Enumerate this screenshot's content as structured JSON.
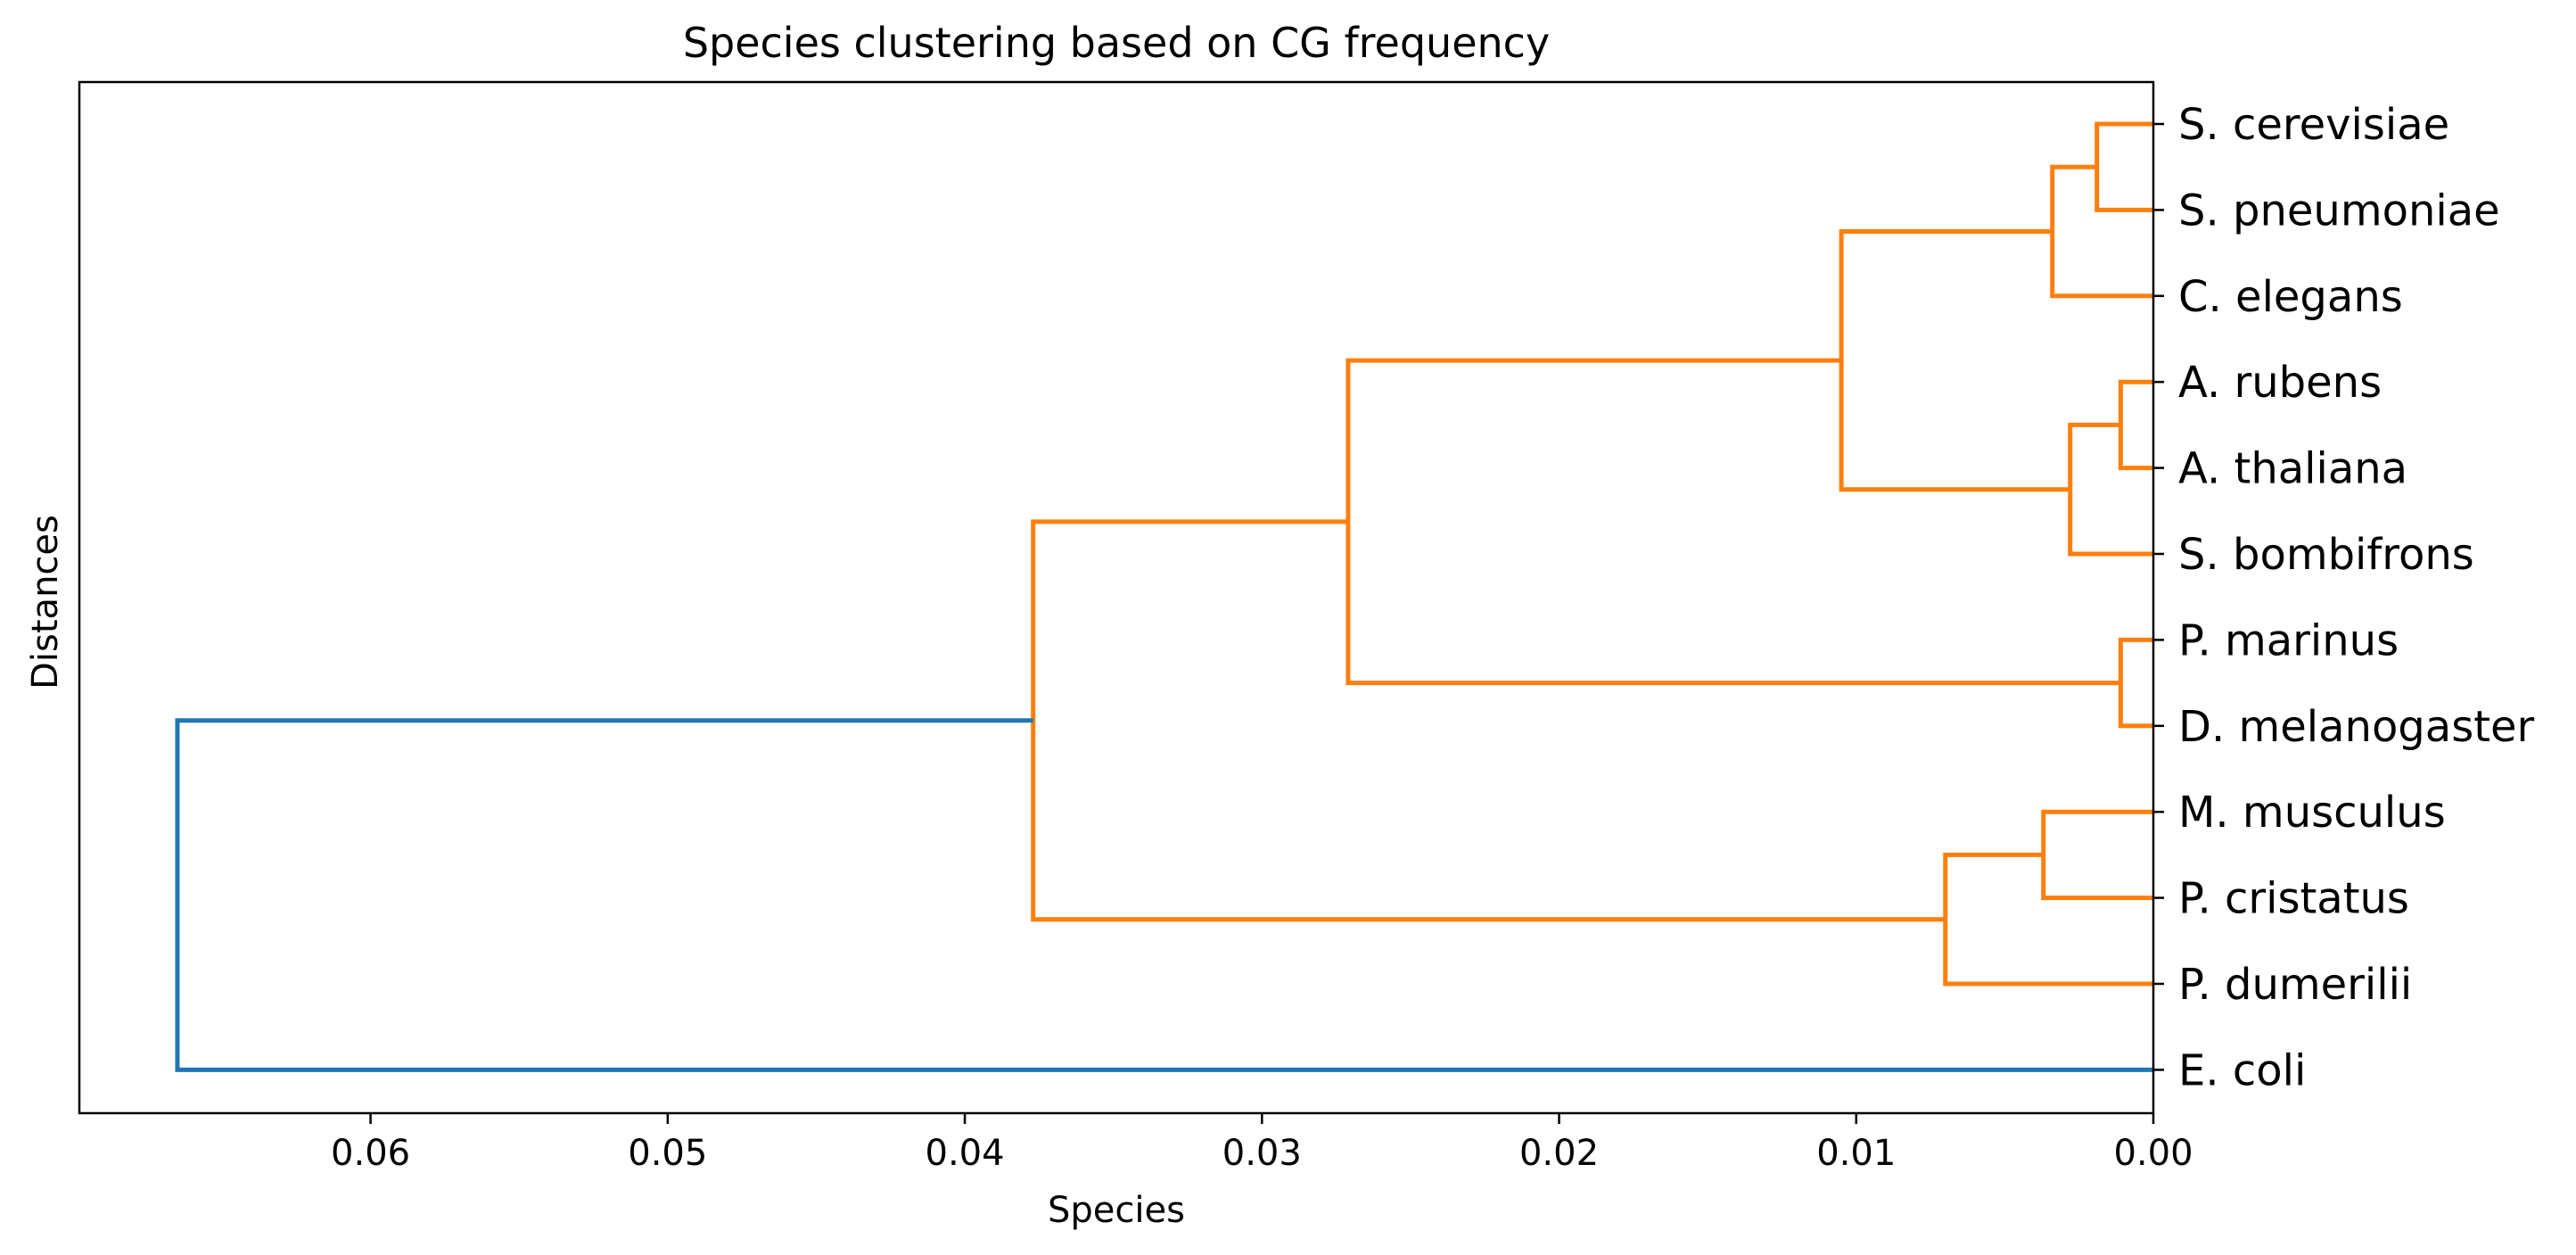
{
  "chart_data": {
    "type": "dendrogram",
    "title": "Species clustering based on CG frequency",
    "xlabel": "Species",
    "ylabel": "Distances",
    "orientation": "left",
    "xlim": [
      0.0698,
      0.0
    ],
    "x_ticks": [
      0.06,
      0.05,
      0.04,
      0.03,
      0.02,
      0.01,
      0.0
    ],
    "x_tick_labels": [
      "0.06",
      "0.05",
      "0.04",
      "0.03",
      "0.02",
      "0.01",
      "0.00"
    ],
    "leaves": [
      "S. cerevisiae",
      "S. pneumoniae",
      "C. elegans",
      "A. rubens",
      "A. thaliana",
      "S. bombifrons",
      "P. marinus",
      "D. melanogaster",
      "M. musculus",
      "P. cristatus",
      "P. dumerilii",
      "E. coli"
    ],
    "merges": [
      {
        "children": [
          "leaf:0",
          "leaf:1"
        ],
        "distance": 0.0019,
        "color": "#ff7f0e"
      },
      {
        "children": [
          "node:0",
          "leaf:2"
        ],
        "distance": 0.0034,
        "color": "#ff7f0e"
      },
      {
        "children": [
          "leaf:3",
          "leaf:4"
        ],
        "distance": 0.0011,
        "color": "#ff7f0e"
      },
      {
        "children": [
          "node:2",
          "leaf:5"
        ],
        "distance": 0.0028,
        "color": "#ff7f0e"
      },
      {
        "children": [
          "node:1",
          "node:3"
        ],
        "distance": 0.0105,
        "color": "#ff7f0e"
      },
      {
        "children": [
          "leaf:6",
          "leaf:7"
        ],
        "distance": 0.0011,
        "color": "#ff7f0e"
      },
      {
        "children": [
          "node:4",
          "node:5"
        ],
        "distance": 0.0271,
        "color": "#ff7f0e"
      },
      {
        "children": [
          "leaf:8",
          "leaf:9"
        ],
        "distance": 0.0037,
        "color": "#ff7f0e"
      },
      {
        "children": [
          "node:7",
          "leaf:10"
        ],
        "distance": 0.007,
        "color": "#ff7f0e"
      },
      {
        "children": [
          "node:6",
          "node:8"
        ],
        "distance": 0.0377,
        "color": "#ff7f0e"
      },
      {
        "children": [
          "node:9",
          "leaf:11"
        ],
        "distance": 0.0665,
        "color": "#1f77b4"
      }
    ],
    "grid": false,
    "colors": {
      "cluster": "#ff7f0e",
      "link_above_threshold": "#1f77b4",
      "axes": "#000000"
    }
  }
}
